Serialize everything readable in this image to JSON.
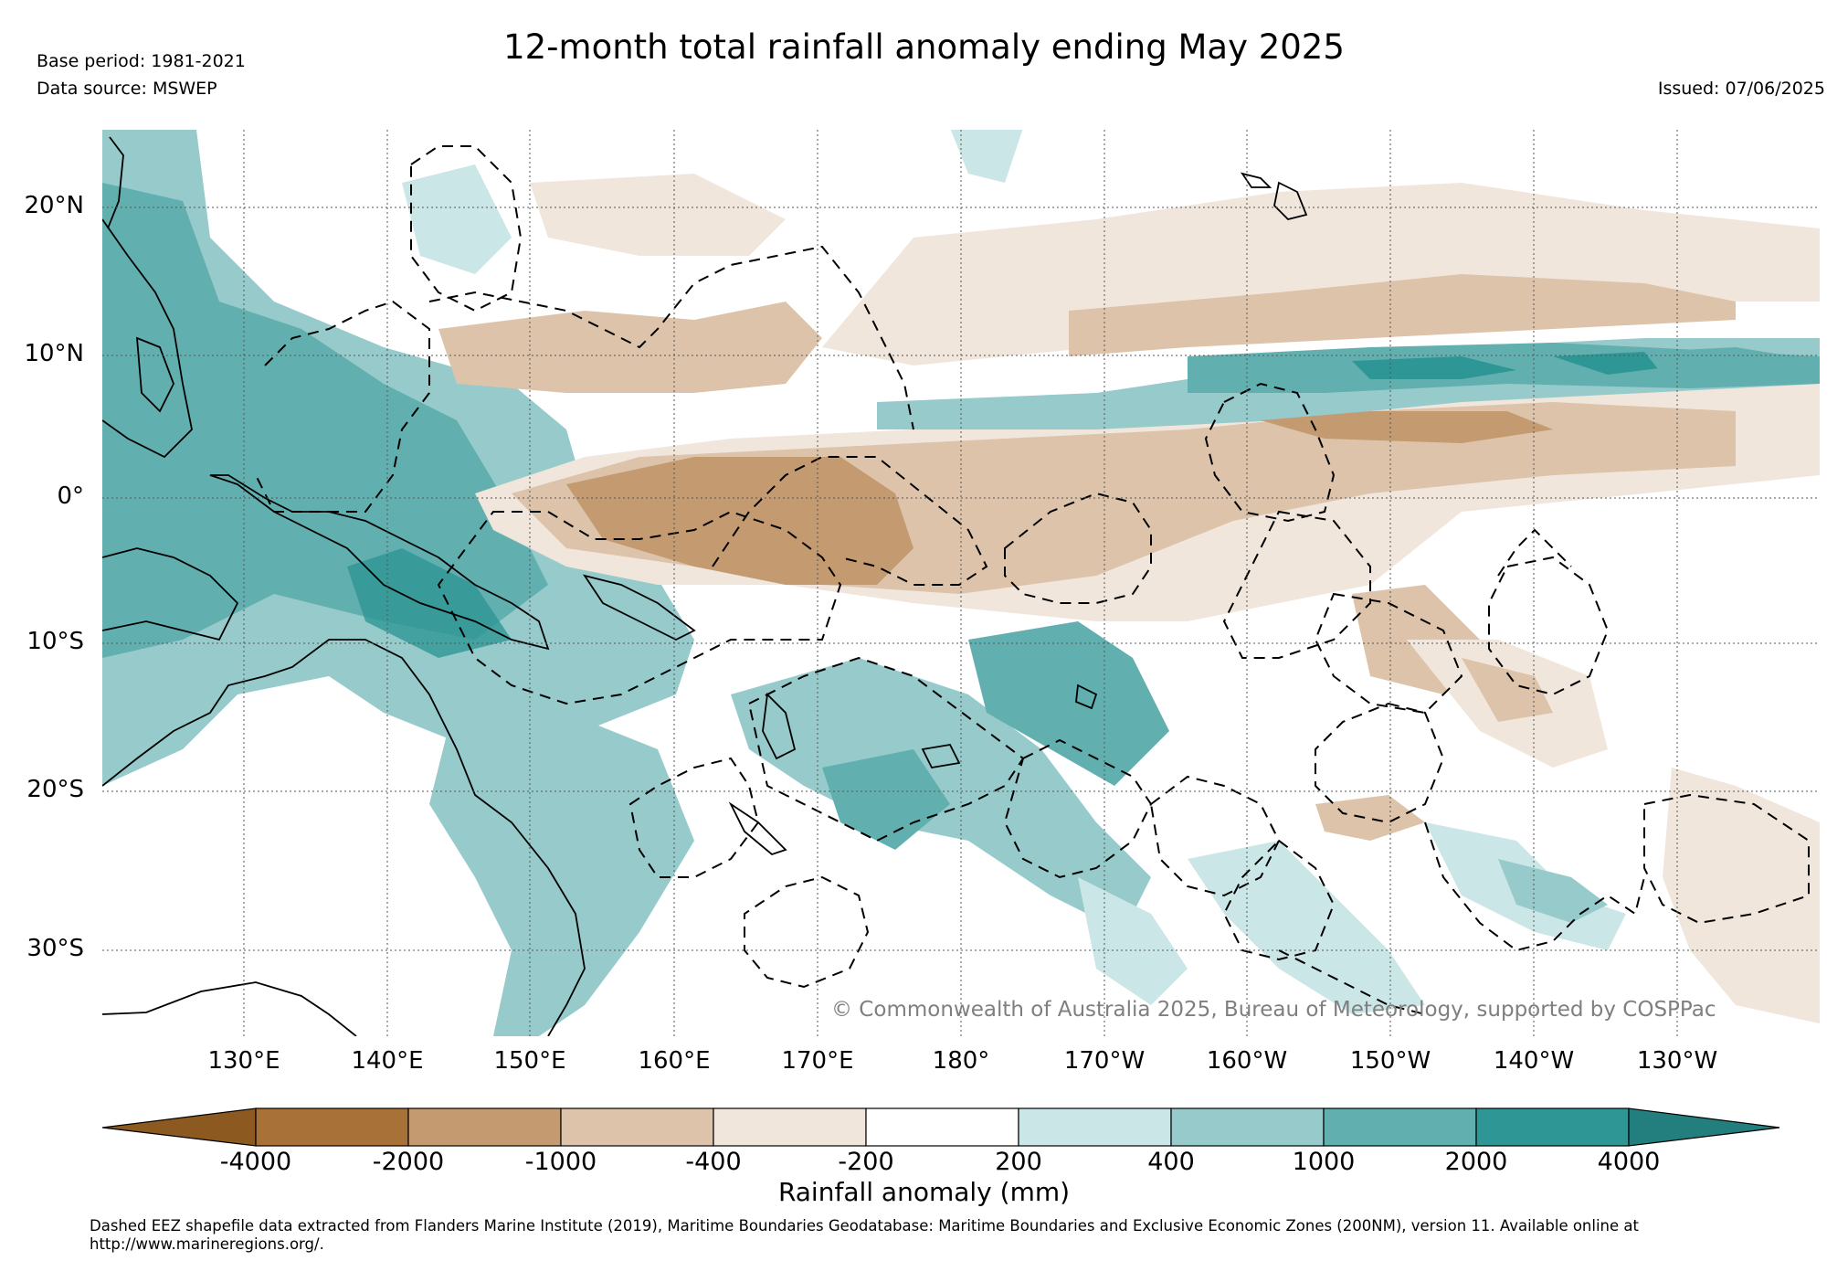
{
  "header": {
    "title": "12-month total rainfall anomaly ending May 2025",
    "base_period": "Base period: 1981-2021",
    "data_source": "Data source: MSWEP",
    "issued": "Issued: 07/06/2025"
  },
  "map": {
    "lat_labels": [
      "20°N",
      "10°N",
      "0°",
      "10°S",
      "20°S",
      "30°S"
    ],
    "lon_labels": [
      "130°E",
      "140°E",
      "150°E",
      "160°E",
      "170°E",
      "180°",
      "170°W",
      "160°W",
      "150°W",
      "140°W",
      "130°W"
    ],
    "copyright": "© Commonwealth of Australia 2025, Bureau of Meteorology, supported by COSPPac"
  },
  "colorbar": {
    "label": "Rainfall anomaly (mm)",
    "ticks": [
      "-4000",
      "-2000",
      "-1000",
      "-400",
      "-200",
      "200",
      "400",
      "1000",
      "2000",
      "4000"
    ],
    "colors": [
      "#8c5a21",
      "#a87137",
      "#c49a70",
      "#dcc3aa",
      "#f0e6dc",
      "#ffffff",
      "#cbe6e6",
      "#96cacb",
      "#62afb0",
      "#2e9694",
      "#237f7d"
    ]
  },
  "footer": {
    "note": "Dashed EEZ shapefile data extracted from Flanders Marine Institute (2019), Maritime Boundaries Geodatabase: Maritime Boundaries and Exclusive Economic Zones (200NM), version 11. Available online at http://www.marineregions.org/."
  }
}
